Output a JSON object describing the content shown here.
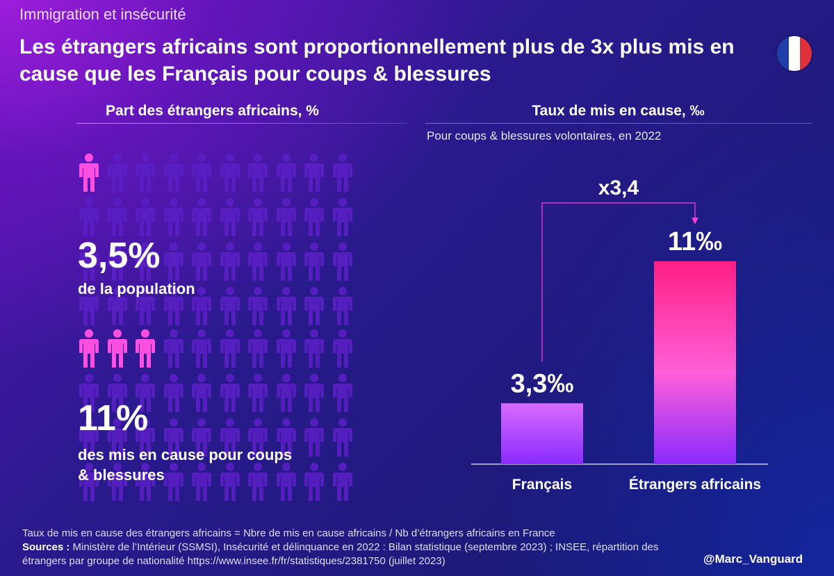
{
  "header": {
    "kicker": "Immigration et insécurité",
    "title": "Les étrangers africains sont proportionnellement plus de 3x plus mis en cause que les Français pour coups & blessures",
    "flag_colors": [
      "#1f3fa8",
      "#ffffff",
      "#e0303b"
    ]
  },
  "left_panel": {
    "title": "Part des étrangers africains, %",
    "population": {
      "pct": "3,5%",
      "label": "de la population",
      "highlighted": 1,
      "total": 40
    },
    "mis_en_cause": {
      "pct": "11%",
      "label": "des mis en cause pour coups & blessures",
      "highlighted": 3,
      "total": 40
    },
    "colors": {
      "highlight": "#ff4fe0",
      "dim": "#5a1fc4"
    }
  },
  "right_panel": {
    "title": "Taux de mis en cause, ‰",
    "subtitle": "Pour coups & blessures volontaires, en 2022"
  },
  "chart_data": {
    "type": "bar",
    "title": "Taux de mis en cause, ‰",
    "subtitle": "Pour coups & blessures volontaires, en 2022",
    "categories": [
      "Français",
      "Étrangers africains"
    ],
    "values": [
      3.3,
      11
    ],
    "value_labels": [
      "3,3‰",
      "11‰"
    ],
    "ylim": [
      0,
      15
    ],
    "annotation": "x3,4",
    "colors": {
      "top": [
        "#d96bff",
        "#ff1f86"
      ],
      "bottom": "#8a2bff"
    }
  },
  "footer": {
    "note": "Taux de mis en cause des étrangers africains = Nbre de mis en cause africains / Nb d’étrangers africains en France",
    "sources_label": "Sources :",
    "sources_text": "Ministère de l’Intérieur (SSMSI), Insécurité et délinquance en 2022 : Bilan statistique (septembre 2023) ; INSEE, répartition des étrangers par groupe de nationalité https://www.insee.fr/fr/statistiques/2381750 (juillet 2023)",
    "handle": "@Marc_Vanguard"
  }
}
